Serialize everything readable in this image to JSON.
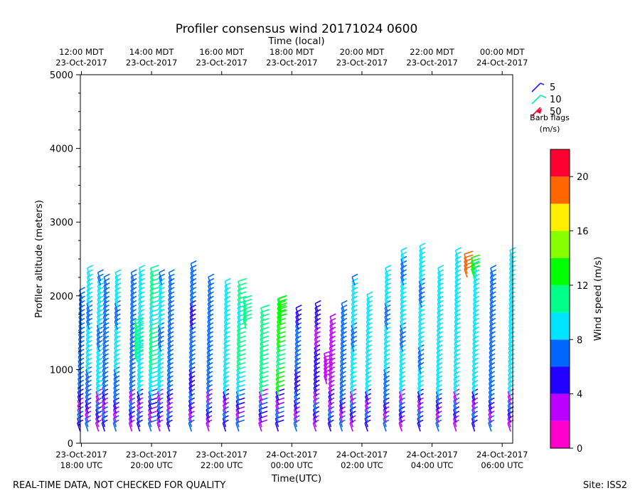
{
  "chart_data": {
    "type": "wind_barb_profile",
    "title": "Profiler consensus wind 20171024 0600",
    "top_axis_label": "Time (local)",
    "top_ticks": [
      {
        "hour": 18,
        "line1": "12:00 MDT",
        "line2": "23-Oct-2017"
      },
      {
        "hour": 20,
        "line1": "14:00 MDT",
        "line2": "23-Oct-2017"
      },
      {
        "hour": 22,
        "line1": "16:00 MDT",
        "line2": "23-Oct-2017"
      },
      {
        "hour": 24,
        "line1": "18:00 MDT",
        "line2": "23-Oct-2017"
      },
      {
        "hour": 26,
        "line1": "20:00 MDT",
        "line2": "23-Oct-2017"
      },
      {
        "hour": 28,
        "line1": "22:00 MDT",
        "line2": "23-Oct-2017"
      },
      {
        "hour": 30,
        "line1": "00:00 MDT",
        "line2": "24-Oct-2017"
      }
    ],
    "bottom_ticks": [
      {
        "hour": 18,
        "line1": "23-Oct-2017",
        "line2": "18:00 UTC"
      },
      {
        "hour": 20,
        "line1": "23-Oct-2017",
        "line2": "20:00 UTC"
      },
      {
        "hour": 22,
        "line1": "23-Oct-2017",
        "line2": "22:00 UTC"
      },
      {
        "hour": 24,
        "line1": "24-Oct-2017",
        "line2": "00:00 UTC"
      },
      {
        "hour": 26,
        "line1": "24-Oct-2017",
        "line2": "02:00 UTC"
      },
      {
        "hour": 28,
        "line1": "24-Oct-2017",
        "line2": "04:00 UTC"
      },
      {
        "hour": 30,
        "line1": "24-Oct-2017",
        "line2": "06:00 UTC"
      }
    ],
    "xlabel": "Time(UTC)",
    "ylabel": "Profiler altitude (meters)",
    "x_range_hours": [
      17.97,
      30.3
    ],
    "ylim": [
      0,
      5000
    ],
    "yticks": [
      "0",
      "1000",
      "2000",
      "3000",
      "4000",
      "5000"
    ],
    "y_tick_values": [
      0,
      1000,
      2000,
      3000,
      4000,
      5000
    ],
    "colorbar": {
      "label": "Wind speed (m/s)",
      "range": [
        0,
        22
      ],
      "ticks": [
        "0",
        "4",
        "8",
        "12",
        "16",
        "20"
      ],
      "tick_values": [
        0,
        4,
        8,
        12,
        16,
        20
      ],
      "bins": [
        {
          "from": 0,
          "to": 2,
          "color": "#ff00cc"
        },
        {
          "from": 2,
          "to": 4,
          "color": "#bb00ff"
        },
        {
          "from": 4,
          "to": 6,
          "color": "#2200ff"
        },
        {
          "from": 6,
          "to": 8,
          "color": "#0066ff"
        },
        {
          "from": 8,
          "to": 10,
          "color": "#00e5ff"
        },
        {
          "from": 10,
          "to": 12,
          "color": "#00ff88"
        },
        {
          "from": 12,
          "to": 14,
          "color": "#00ff00"
        },
        {
          "from": 14,
          "to": 16,
          "color": "#88ff00"
        },
        {
          "from": 16,
          "to": 18,
          "color": "#ffee00"
        },
        {
          "from": 18,
          "to": 20,
          "color": "#ff6600"
        },
        {
          "from": 20,
          "to": 22,
          "color": "#ff0033"
        }
      ]
    },
    "barb_flags": {
      "title": "Barb flags",
      "units": "(m/s)",
      "entries": [
        {
          "label": "5",
          "color": "#1a1aff",
          "kind": "half"
        },
        {
          "label": "10",
          "color": "#00f0aa",
          "kind": "full"
        },
        {
          "label": "50",
          "color": "#ff0033",
          "kind": "flag"
        }
      ]
    },
    "profile_times_hours": [
      18.05,
      18.25,
      18.55,
      18.75,
      19.05,
      19.5,
      19.75,
      20.05,
      20.3,
      20.6,
      21.2,
      21.7,
      22.2,
      22.55,
      23.2,
      23.7,
      24.2,
      24.75,
      25.2,
      25.5,
      25.8,
      26.25,
      26.75,
      27.2,
      27.75,
      28.25,
      28.75,
      29.3,
      29.75,
      30.3
    ],
    "profile_tops_m": [
      2000,
      2300,
      2220,
      2150,
      2200,
      2250,
      2300,
      2270,
      2250,
      2230,
      2320,
      2150,
      2130,
      2120,
      1760,
      1880,
      1720,
      1820,
      1650,
      1800,
      2140,
      1940,
      2280,
      2550,
      2560,
      2290,
      2500,
      2350,
      2300,
      2520
    ],
    "profile_speeds_ms": [
      7,
      8,
      8,
      7,
      8,
      7,
      9,
      10,
      8,
      7,
      6,
      7,
      9,
      10,
      11,
      12,
      6,
      4,
      3,
      7,
      8,
      9,
      8,
      8,
      8,
      9,
      9,
      9,
      7,
      9
    ]
  },
  "footer": {
    "left": "REAL-TIME DATA, NOT CHECKED FOR QUALITY",
    "right": "Site: ISS2"
  }
}
